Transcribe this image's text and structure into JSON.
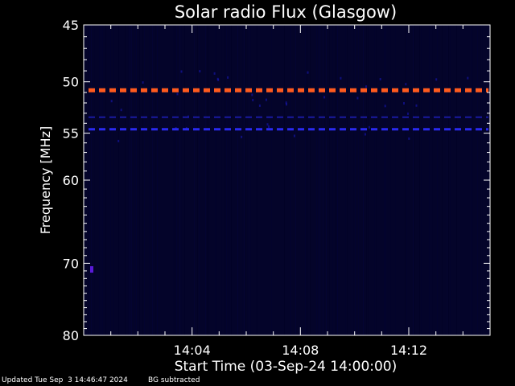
{
  "chart_data": {
    "type": "heatmap",
    "title": "Solar radio Flux (Glasgow)",
    "xlabel": "Start Time (03-Sep-24 14:00:00)",
    "ylabel": "Frequency [MHz]",
    "x_range_minutes": [
      0,
      15
    ],
    "y_range_mhz": [
      45,
      80
    ],
    "y_scale": "log",
    "x_tick_labels": [
      {
        "minute": 4,
        "label": "14:04"
      },
      {
        "minute": 8,
        "label": "14:08"
      },
      {
        "minute": 12,
        "label": "14:12"
      }
    ],
    "y_tick_labels": [
      {
        "mhz": 45,
        "label": "45"
      },
      {
        "mhz": 50,
        "label": "50"
      },
      {
        "mhz": 55,
        "label": "55"
      },
      {
        "mhz": 60,
        "label": "60"
      },
      {
        "mhz": 70,
        "label": "70"
      },
      {
        "mhz": 80,
        "label": "80"
      }
    ],
    "interference_bands": [
      {
        "frequency_mhz": 50.8,
        "intensity": "high",
        "color": "#ff5a1e"
      },
      {
        "frequency_mhz": 54.6,
        "intensity": "medium",
        "color": "#2a2af0"
      },
      {
        "frequency_mhz": 53.4,
        "intensity": "low",
        "color": "#1a1aa0"
      }
    ],
    "grid": false,
    "legend": "none",
    "colors": {
      "background": "#000000",
      "axes": "#ffffff",
      "low_level": "#04042a"
    }
  },
  "footer": {
    "updated": "Updated Tue Sep  3 14:46:47 2024",
    "note": "BG subtracted"
  }
}
